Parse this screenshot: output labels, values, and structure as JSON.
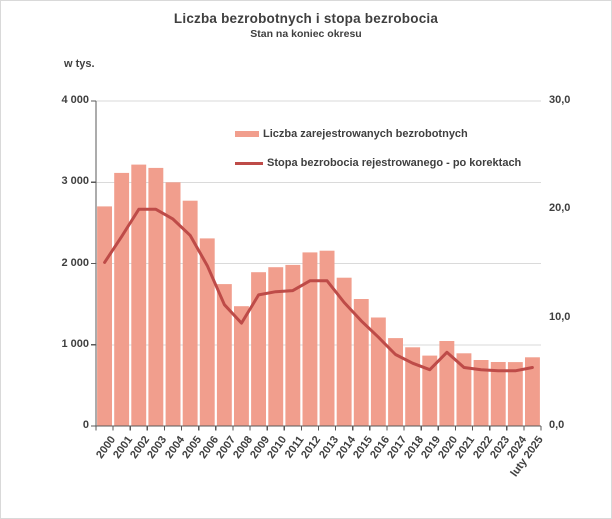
{
  "chart_data": {
    "type": "combo-bar-line",
    "title": "Liczba bezrobotnych i stopa bezrobocia",
    "subtitle": "Stan na koniec okresu",
    "grid": true,
    "legend_position": "top-right-inside",
    "left_axis": {
      "label": "w tys.",
      "min": 0,
      "max": 4000,
      "ticks": [
        {
          "value": 4000,
          "label": "4 000"
        },
        {
          "value": 3000,
          "label": "3 000"
        },
        {
          "value": 2000,
          "label": "2 000"
        },
        {
          "value": 1000,
          "label": "1 000"
        },
        {
          "value": 0,
          "label": "0"
        }
      ]
    },
    "right_axis": {
      "min": 0,
      "max": 30,
      "ticks": [
        {
          "value": 30,
          "label": "30,0"
        },
        {
          "value": 20,
          "label": "20,0"
        },
        {
          "value": 10,
          "label": "10,0"
        },
        {
          "value": 0,
          "label": "0,0"
        }
      ]
    },
    "categories": [
      "2000",
      "2001",
      "2002",
      "2003",
      "2004",
      "2005",
      "2006",
      "2007",
      "2008",
      "2009",
      "2010",
      "2011",
      "2012",
      "2013",
      "2014",
      "2015",
      "2016",
      "2017",
      "2018",
      "2019",
      "2020",
      "2021",
      "2022",
      "2023",
      "2024",
      "luty 2025"
    ],
    "series": [
      {
        "name": "Liczba zarejestrowanych bezrobotnych",
        "type": "bar",
        "axis": "left",
        "color": "#F19E8D",
        "values": [
          2703,
          3115,
          3217,
          3176,
          3000,
          2773,
          2309,
          1747,
          1474,
          1893,
          1955,
          1983,
          2137,
          2158,
          1825,
          1563,
          1335,
          1082,
          969,
          866,
          1046,
          895,
          812,
          788,
          787,
          845
        ]
      },
      {
        "name": "Stopa bezrobocia rejestrowanego - po korektach",
        "type": "line",
        "axis": "right",
        "color": "#BE4B48",
        "values": [
          15.1,
          17.5,
          20.0,
          20.0,
          19.1,
          17.6,
          14.8,
          11.2,
          9.5,
          12.1,
          12.4,
          12.5,
          13.4,
          13.4,
          11.4,
          9.7,
          8.2,
          6.6,
          5.8,
          5.2,
          6.8,
          5.4,
          5.2,
          5.1,
          5.1,
          5.4
        ]
      }
    ]
  },
  "colors": {
    "bar": "#F19E8D",
    "line": "#BE4B48",
    "grid": "#DADADA",
    "axis": "#595959",
    "text": "#3F3F3F",
    "border": "#D9D9D9"
  }
}
